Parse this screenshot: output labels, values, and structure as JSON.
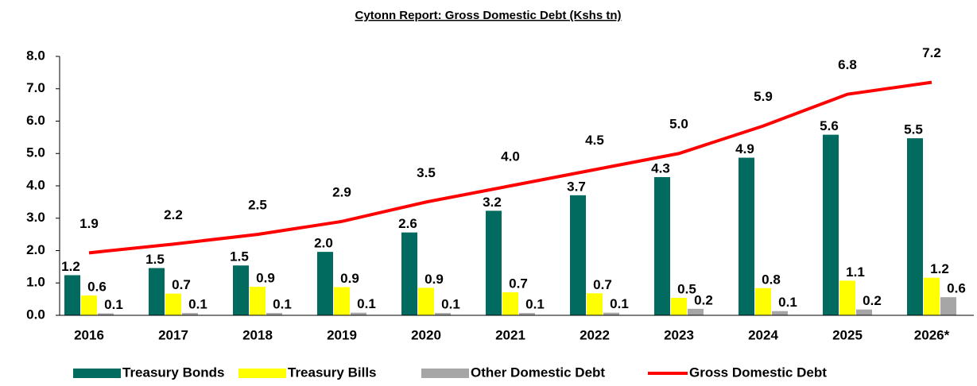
{
  "chart_data": {
    "type": "bar",
    "title": "Cytonn Report: Gross Domestic Debt (Kshs tn)",
    "categories": [
      "2016",
      "2017",
      "2018",
      "2019",
      "2020",
      "2021",
      "2022",
      "2023",
      "2024",
      "2025",
      "2026*"
    ],
    "ylim": [
      0,
      8
    ],
    "yticks": [
      {
        "value": 0,
        "label": "0.0"
      },
      {
        "value": 1,
        "label": "1.0"
      },
      {
        "value": 2,
        "label": "2.0"
      },
      {
        "value": 3,
        "label": "3.0"
      },
      {
        "value": 4,
        "label": "4.0"
      },
      {
        "value": 5,
        "label": "5.0"
      },
      {
        "value": 6,
        "label": "6.0"
      },
      {
        "value": 7,
        "label": "7.0"
      },
      {
        "value": 8,
        "label": "8.0"
      }
    ],
    "series": [
      {
        "name": "Treasury Bonds",
        "type": "bar",
        "color": "#006b5e",
        "values": [
          1.24,
          1.46,
          1.54,
          1.96,
          2.56,
          3.23,
          3.71,
          4.27,
          4.87,
          5.58,
          5.47
        ],
        "value_labels": [
          "1.2",
          "1.5",
          "1.5",
          "2.0",
          "2.6",
          "3.2",
          "3.7",
          "4.3",
          "4.9",
          "5.6",
          "5.5"
        ]
      },
      {
        "name": "Treasury Bills",
        "type": "bar",
        "color": "#ffff00",
        "values": [
          0.61,
          0.67,
          0.88,
          0.87,
          0.85,
          0.71,
          0.68,
          0.54,
          0.84,
          1.07,
          1.16
        ],
        "value_labels": [
          "0.6",
          "0.7",
          "0.9",
          "0.9",
          "0.9",
          "0.7",
          "0.7",
          "0.5",
          "0.8",
          "1.1",
          "1.2"
        ]
      },
      {
        "name": "Other Domestic Debt",
        "type": "bar",
        "color": "#a6a6a6",
        "values": [
          0.06,
          0.07,
          0.07,
          0.08,
          0.07,
          0.07,
          0.08,
          0.2,
          0.13,
          0.18,
          0.56
        ],
        "value_labels": [
          "0.1",
          "0.1",
          "0.1",
          "0.1",
          "0.1",
          "0.1",
          "0.1",
          "0.2",
          "0.1",
          "0.2",
          "0.6"
        ]
      },
      {
        "name": "Gross Domestic Debt",
        "type": "line",
        "color": "#ff0000",
        "values": [
          1.93,
          2.2,
          2.5,
          2.9,
          3.5,
          4.0,
          4.5,
          5.0,
          5.85,
          6.83,
          7.2
        ],
        "value_labels": [
          "1.9",
          "2.2",
          "2.5",
          "2.9",
          "3.5",
          "4.0",
          "4.5",
          "5.0",
          "5.9",
          "6.8",
          "7.2"
        ]
      }
    ]
  }
}
